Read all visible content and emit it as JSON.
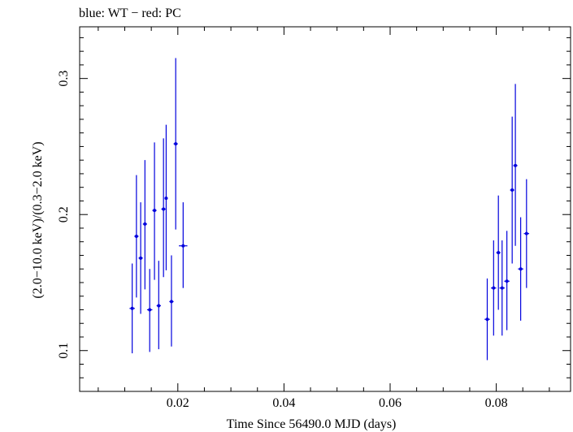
{
  "chart_data": {
    "type": "scatter",
    "title": "blue: WT − red: PC",
    "xlabel": "Time Since 56490.0 MJD (days)",
    "ylabel": "(2.0−10.0 keV)/(0.3−2.0 keV)",
    "xlim": [
      0.0015,
      0.094
    ],
    "ylim": [
      0.07,
      0.338
    ],
    "x_ticks": [
      {
        "value": 0.02,
        "label": "0.02"
      },
      {
        "value": 0.04,
        "label": "0.04"
      },
      {
        "value": 0.06,
        "label": "0.06"
      },
      {
        "value": 0.08,
        "label": "0.08"
      }
    ],
    "y_ticks": [
      {
        "value": 0.1,
        "label": "0.1"
      },
      {
        "value": 0.2,
        "label": "0.2"
      },
      {
        "value": 0.3,
        "label": "0.3"
      }
    ],
    "series": [
      {
        "color": "#0000dd",
        "points": [
          {
            "x": 0.0114,
            "xerr": 0.0005,
            "y": 0.131,
            "ylo": 0.098,
            "yhi": 0.164
          },
          {
            "x": 0.0122,
            "xerr": 0.0004,
            "y": 0.184,
            "ylo": 0.139,
            "yhi": 0.229
          },
          {
            "x": 0.013,
            "xerr": 0.0004,
            "y": 0.168,
            "ylo": 0.127,
            "yhi": 0.209
          },
          {
            "x": 0.0138,
            "xerr": 0.0004,
            "y": 0.193,
            "ylo": 0.145,
            "yhi": 0.24
          },
          {
            "x": 0.0147,
            "xerr": 0.0005,
            "y": 0.13,
            "ylo": 0.099,
            "yhi": 0.16
          },
          {
            "x": 0.0156,
            "xerr": 0.0004,
            "y": 0.203,
            "ylo": 0.152,
            "yhi": 0.253
          },
          {
            "x": 0.0164,
            "xerr": 0.0004,
            "y": 0.133,
            "ylo": 0.101,
            "yhi": 0.166
          },
          {
            "x": 0.0173,
            "xerr": 0.0004,
            "y": 0.204,
            "ylo": 0.154,
            "yhi": 0.256
          },
          {
            "x": 0.0178,
            "xerr": 0.0003,
            "y": 0.212,
            "ylo": 0.159,
            "yhi": 0.266
          },
          {
            "x": 0.0188,
            "xerr": 0.0004,
            "y": 0.136,
            "ylo": 0.103,
            "yhi": 0.17
          },
          {
            "x": 0.0196,
            "xerr": 0.0004,
            "y": 0.252,
            "ylo": 0.189,
            "yhi": 0.315
          },
          {
            "x": 0.021,
            "xerr": 0.0008,
            "y": 0.177,
            "ylo": 0.146,
            "yhi": 0.209
          },
          {
            "x": 0.0783,
            "xerr": 0.0005,
            "y": 0.123,
            "ylo": 0.093,
            "yhi": 0.153
          },
          {
            "x": 0.0795,
            "xerr": 0.0005,
            "y": 0.146,
            "ylo": 0.111,
            "yhi": 0.181
          },
          {
            "x": 0.0804,
            "xerr": 0.0004,
            "y": 0.172,
            "ylo": 0.13,
            "yhi": 0.214
          },
          {
            "x": 0.0811,
            "xerr": 0.0005,
            "y": 0.146,
            "ylo": 0.111,
            "yhi": 0.181
          },
          {
            "x": 0.082,
            "xerr": 0.0005,
            "y": 0.151,
            "ylo": 0.115,
            "yhi": 0.188
          },
          {
            "x": 0.083,
            "xerr": 0.0004,
            "y": 0.218,
            "ylo": 0.164,
            "yhi": 0.272
          },
          {
            "x": 0.0836,
            "xerr": 0.0004,
            "y": 0.236,
            "ylo": 0.177,
            "yhi": 0.296
          },
          {
            "x": 0.0846,
            "xerr": 0.0005,
            "y": 0.16,
            "ylo": 0.122,
            "yhi": 0.198
          },
          {
            "x": 0.0857,
            "xerr": 0.0005,
            "y": 0.186,
            "ylo": 0.146,
            "yhi": 0.226
          }
        ]
      }
    ]
  }
}
